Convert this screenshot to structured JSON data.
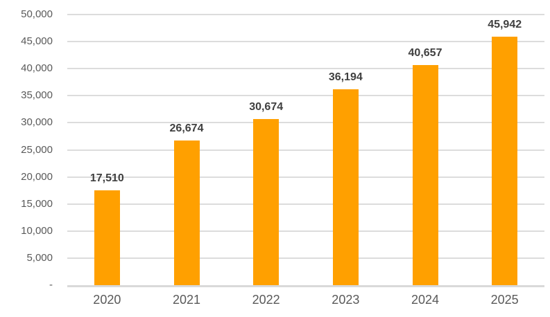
{
  "chart_data": {
    "type": "bar",
    "title": "",
    "xlabel": "",
    "ylabel": "",
    "categories": [
      "2020",
      "2021",
      "2022",
      "2023",
      "2024",
      "2025"
    ],
    "values": [
      17510,
      26674,
      30674,
      36194,
      40657,
      45942
    ],
    "value_labels": [
      "17,510",
      "26,674",
      "30,674",
      "36,194",
      "40,657",
      "45,942"
    ],
    "ylim": [
      0,
      50000
    ],
    "ytick_step": 5000,
    "ytick_labels": [
      "-",
      "5,000",
      "10,000",
      "15,000",
      "20,000",
      "25,000",
      "30,000",
      "35,000",
      "40,000",
      "45,000",
      "50,000"
    ],
    "grid": true,
    "legend": "none",
    "bar_color": "#FFA000",
    "gridline_color": "#DCDCDC",
    "axis_line_color": "#D9D9D9",
    "axis_text_color": "#595959",
    "value_label_color": "#3F3F3F"
  }
}
